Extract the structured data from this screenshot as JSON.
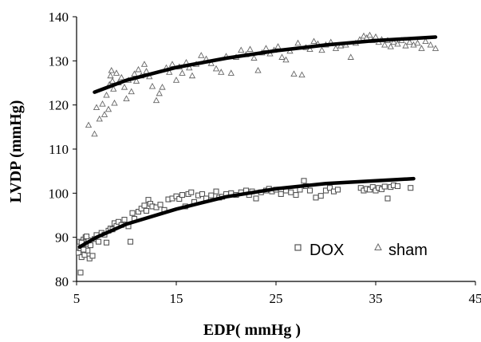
{
  "chart_data": {
    "type": "scatter",
    "xlabel": "EDP( mmHg )",
    "ylabel": "LVDP (mmHg)",
    "xlim": [
      5,
      45
    ],
    "ylim": [
      80,
      140
    ],
    "xticks": [
      5,
      15,
      25,
      35,
      45
    ],
    "yticks": [
      80,
      90,
      100,
      110,
      120,
      130,
      140
    ],
    "legend_position": "bottom-right",
    "series": [
      {
        "name": "DOX",
        "marker": "square",
        "color": "#555555",
        "points": [
          [
            5.2,
            86.5
          ],
          [
            5.3,
            89
          ],
          [
            5.4,
            87.5
          ],
          [
            5.5,
            85.5
          ],
          [
            5.6,
            88
          ],
          [
            5.7,
            89.5
          ],
          [
            5.8,
            86
          ],
          [
            5.9,
            90
          ],
          [
            6.0,
            88.5
          ],
          [
            6.1,
            87
          ],
          [
            6.2,
            89.3
          ],
          [
            6.3,
            85.2
          ],
          [
            5.4,
            82
          ],
          [
            5.5,
            88.8
          ],
          [
            5.7,
            87.2
          ],
          [
            6.0,
            90.2
          ],
          [
            6.4,
            88.2
          ],
          [
            6.6,
            85.8
          ],
          [
            6.8,
            89.6
          ],
          [
            7.0,
            90.5
          ],
          [
            7.2,
            89
          ],
          [
            7.5,
            91
          ],
          [
            7.8,
            90.6
          ],
          [
            8.0,
            88.8
          ],
          [
            8.2,
            91.5
          ],
          [
            8.4,
            92
          ],
          [
            8.6,
            91.8
          ],
          [
            8.8,
            93.2
          ],
          [
            9.0,
            92.6
          ],
          [
            9.2,
            93.5
          ],
          [
            9.5,
            92.8
          ],
          [
            9.8,
            94
          ],
          [
            10.2,
            92.5
          ],
          [
            10.4,
            89
          ],
          [
            10.6,
            95.5
          ],
          [
            10.8,
            94.2
          ],
          [
            11.2,
            95.8
          ],
          [
            11.5,
            96.5
          ],
          [
            11.8,
            97.2
          ],
          [
            12.0,
            96
          ],
          [
            12.2,
            98.5
          ],
          [
            12.4,
            97.6
          ],
          [
            12.6,
            97
          ],
          [
            13.0,
            96.8
          ],
          [
            13.4,
            97.4
          ],
          [
            13.8,
            96.2
          ],
          [
            14.2,
            98.6
          ],
          [
            14.6,
            98.8
          ],
          [
            15.0,
            99.3
          ],
          [
            15.3,
            98.7
          ],
          [
            15.6,
            99.6
          ],
          [
            15.9,
            97
          ],
          [
            16.2,
            99.8
          ],
          [
            16.5,
            100.2
          ],
          [
            16.8,
            98
          ],
          [
            17.2,
            99.5
          ],
          [
            17.6,
            99.8
          ],
          [
            18.0,
            98.8
          ],
          [
            18.5,
            99.5
          ],
          [
            19.0,
            100.4
          ],
          [
            19.3,
            99
          ],
          [
            19.6,
            99.2
          ],
          [
            20.0,
            99.8
          ],
          [
            20.5,
            100
          ],
          [
            21.0,
            99.6
          ],
          [
            21.5,
            100.2
          ],
          [
            22.0,
            100.6
          ],
          [
            22.3,
            99.6
          ],
          [
            22.6,
            100.4
          ],
          [
            23.0,
            98.8
          ],
          [
            23.5,
            100.2
          ],
          [
            24.0,
            100.6
          ],
          [
            24.3,
            101
          ],
          [
            24.6,
            100.4
          ],
          [
            25.0,
            100.8
          ],
          [
            25.5,
            99.8
          ],
          [
            26.0,
            100.6
          ],
          [
            26.5,
            100.2
          ],
          [
            27.0,
            99.6
          ],
          [
            27.4,
            100.8
          ],
          [
            27.8,
            102.8
          ],
          [
            28.0,
            101.6
          ],
          [
            28.4,
            100.6
          ],
          [
            29.0,
            99
          ],
          [
            29.5,
            99.4
          ],
          [
            30.0,
            100.6
          ],
          [
            30.4,
            101.2
          ],
          [
            30.8,
            100.4
          ],
          [
            31.2,
            100.8
          ],
          [
            33.5,
            101.2
          ],
          [
            33.8,
            100.6
          ],
          [
            34.1,
            101
          ],
          [
            34.4,
            100.8
          ],
          [
            34.7,
            101.4
          ],
          [
            35.0,
            100.6
          ],
          [
            35.3,
            101.2
          ],
          [
            35.6,
            100.9
          ],
          [
            35.9,
            101.5
          ],
          [
            36.2,
            98.8
          ],
          [
            36.5,
            101.4
          ],
          [
            36.8,
            101.8
          ],
          [
            37.2,
            101.6
          ],
          [
            38.5,
            101.2
          ]
        ]
      },
      {
        "name": "sham",
        "marker": "triangle",
        "color": "#666666",
        "points": [
          [
            6.2,
            115.4
          ],
          [
            6.8,
            113.4
          ],
          [
            7.0,
            119.4
          ],
          [
            7.3,
            116.8
          ],
          [
            7.6,
            120.2
          ],
          [
            7.8,
            117.8
          ],
          [
            8.0,
            122.2
          ],
          [
            8.2,
            119
          ],
          [
            8.3,
            124.6
          ],
          [
            8.4,
            126.6
          ],
          [
            8.5,
            127.8
          ],
          [
            8.6,
            125.4
          ],
          [
            8.7,
            123.6
          ],
          [
            8.8,
            120.4
          ],
          [
            9.0,
            127.2
          ],
          [
            9.2,
            125
          ],
          [
            9.5,
            126.2
          ],
          [
            9.8,
            124
          ],
          [
            10.0,
            121.4
          ],
          [
            10.2,
            125.6
          ],
          [
            10.5,
            123
          ],
          [
            10.8,
            127
          ],
          [
            11.0,
            125.4
          ],
          [
            11.2,
            128
          ],
          [
            11.5,
            126.6
          ],
          [
            11.8,
            129.2
          ],
          [
            12.0,
            127.6
          ],
          [
            12.3,
            126.4
          ],
          [
            12.6,
            124.2
          ],
          [
            13.0,
            121
          ],
          [
            13.3,
            122.6
          ],
          [
            13.6,
            124
          ],
          [
            14.0,
            128.4
          ],
          [
            14.3,
            127.4
          ],
          [
            14.6,
            129.2
          ],
          [
            15.0,
            125.6
          ],
          [
            15.3,
            128.6
          ],
          [
            15.6,
            127.2
          ],
          [
            16.0,
            129.6
          ],
          [
            16.3,
            128.4
          ],
          [
            16.6,
            126.6
          ],
          [
            17.0,
            129.2
          ],
          [
            17.5,
            131.2
          ],
          [
            18.0,
            130.4
          ],
          [
            18.5,
            129.4
          ],
          [
            19.0,
            128.2
          ],
          [
            19.5,
            127.4
          ],
          [
            20.0,
            131
          ],
          [
            20.5,
            127.2
          ],
          [
            21.0,
            130.8
          ],
          [
            21.5,
            132.4
          ],
          [
            22.0,
            131.4
          ],
          [
            22.4,
            132.6
          ],
          [
            22.8,
            130.6
          ],
          [
            23.2,
            127.8
          ],
          [
            23.6,
            131.8
          ],
          [
            24.0,
            132.8
          ],
          [
            24.4,
            131.6
          ],
          [
            24.8,
            132.4
          ],
          [
            25.2,
            133.2
          ],
          [
            25.6,
            130.8
          ],
          [
            26.0,
            130.2
          ],
          [
            26.4,
            132.2
          ],
          [
            26.8,
            127
          ],
          [
            27.2,
            134
          ],
          [
            27.6,
            126.8
          ],
          [
            28.0,
            133
          ],
          [
            28.4,
            132.6
          ],
          [
            28.8,
            134.4
          ],
          [
            29.2,
            133.8
          ],
          [
            29.6,
            132.4
          ],
          [
            30.0,
            133.6
          ],
          [
            30.5,
            134.2
          ],
          [
            31.0,
            132.8
          ],
          [
            31.5,
            133.4
          ],
          [
            32.0,
            133.6
          ],
          [
            32.5,
            130.8
          ],
          [
            33.0,
            134
          ],
          [
            33.4,
            134.8
          ],
          [
            33.8,
            135.6
          ],
          [
            34.1,
            135.2
          ],
          [
            34.4,
            135.8
          ],
          [
            34.7,
            134.6
          ],
          [
            35.0,
            135.4
          ],
          [
            35.3,
            134.2
          ],
          [
            35.6,
            134.8
          ],
          [
            35.9,
            133.6
          ],
          [
            36.2,
            134.6
          ],
          [
            36.5,
            133.2
          ],
          [
            36.8,
            134.2
          ],
          [
            37.2,
            133.8
          ],
          [
            37.6,
            134.6
          ],
          [
            38.0,
            133.4
          ],
          [
            38.4,
            134.2
          ],
          [
            38.8,
            133.6
          ],
          [
            39.2,
            134
          ],
          [
            39.6,
            132.8
          ],
          [
            40.0,
            134.4
          ],
          [
            40.5,
            133.6
          ],
          [
            41.0,
            132.8
          ]
        ]
      }
    ],
    "trendlines": [
      {
        "series": "DOX",
        "form": "logarithmic",
        "x_start": 5.3,
        "x_end": 38.8,
        "points": [
          [
            5.3,
            87.8
          ],
          [
            7,
            90
          ],
          [
            10,
            93
          ],
          [
            15,
            96.4
          ],
          [
            20,
            99.2
          ],
          [
            25,
            101
          ],
          [
            30,
            102.2
          ],
          [
            35,
            102.8
          ],
          [
            38.8,
            103.3
          ]
        ]
      },
      {
        "series": "sham",
        "form": "logarithmic",
        "x_start": 6.8,
        "x_end": 41.0,
        "points": [
          [
            6.8,
            122.9
          ],
          [
            10,
            125.6
          ],
          [
            15,
            128.5
          ],
          [
            20,
            130.6
          ],
          [
            25,
            132.3
          ],
          [
            30,
            133.6
          ],
          [
            35,
            134.6
          ],
          [
            41,
            135.4
          ]
        ]
      }
    ]
  }
}
